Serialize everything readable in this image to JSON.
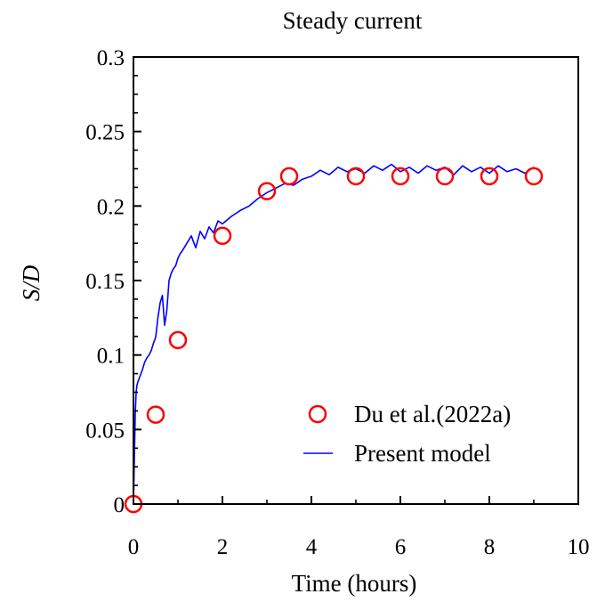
{
  "chart_data": {
    "type": "line",
    "title": "Steady current",
    "xlabel": "Time (hours)",
    "ylabel": "S/D",
    "xlim": [
      0,
      10
    ],
    "ylim": [
      0,
      0.3
    ],
    "x_ticks": [
      0,
      2,
      4,
      6,
      8,
      10
    ],
    "y_ticks": [
      0,
      0.05,
      0.1,
      0.15,
      0.2,
      0.25,
      0.3
    ],
    "x_tick_labels": [
      "0",
      "2",
      "4",
      "6",
      "8",
      "10"
    ],
    "y_tick_labels": [
      "0",
      "0.05",
      "0.1",
      "0.15",
      "0.2",
      "0.25",
      "0.3"
    ],
    "grid": false,
    "legend_position": "bottom-right",
    "series": [
      {
        "name": "Du et al.(2022a)",
        "kind": "scatter",
        "marker": "open-circle",
        "color": "#ff0000",
        "x": [
          0.0,
          0.5,
          1.0,
          2.0,
          3.0,
          3.5,
          5.0,
          6.0,
          7.0,
          8.0,
          9.0
        ],
        "y": [
          0.0,
          0.06,
          0.11,
          0.18,
          0.21,
          0.22,
          0.22,
          0.22,
          0.22,
          0.22,
          0.22
        ]
      },
      {
        "name": "Present model",
        "kind": "line",
        "color": "#0000ff",
        "x": [
          0.0,
          0.02,
          0.04,
          0.06,
          0.08,
          0.1,
          0.15,
          0.2,
          0.25,
          0.3,
          0.35,
          0.4,
          0.45,
          0.5,
          0.55,
          0.6,
          0.65,
          0.7,
          0.75,
          0.8,
          0.85,
          0.9,
          0.95,
          1.0,
          1.05,
          1.1,
          1.2,
          1.3,
          1.4,
          1.5,
          1.6,
          1.7,
          1.8,
          1.9,
          2.0,
          2.2,
          2.4,
          2.6,
          2.8,
          3.0,
          3.2,
          3.4,
          3.6,
          3.8,
          4.0,
          4.2,
          4.4,
          4.6,
          4.8,
          5.0,
          5.2,
          5.4,
          5.6,
          5.8,
          6.0,
          6.2,
          6.4,
          6.6,
          6.8,
          7.0,
          7.2,
          7.4,
          7.6,
          7.8,
          8.0,
          8.2,
          8.4,
          8.6,
          8.8,
          9.0
        ],
        "y": [
          0.0,
          0.03,
          0.06,
          0.075,
          0.08,
          0.082,
          0.086,
          0.09,
          0.095,
          0.098,
          0.1,
          0.103,
          0.108,
          0.112,
          0.125,
          0.135,
          0.14,
          0.12,
          0.13,
          0.15,
          0.155,
          0.158,
          0.16,
          0.165,
          0.168,
          0.17,
          0.175,
          0.18,
          0.172,
          0.183,
          0.178,
          0.186,
          0.182,
          0.19,
          0.188,
          0.193,
          0.197,
          0.2,
          0.205,
          0.209,
          0.212,
          0.215,
          0.214,
          0.218,
          0.22,
          0.224,
          0.221,
          0.226,
          0.223,
          0.225,
          0.222,
          0.227,
          0.224,
          0.228,
          0.223,
          0.226,
          0.222,
          0.227,
          0.224,
          0.226,
          0.221,
          0.227,
          0.223,
          0.226,
          0.222,
          0.227,
          0.223,
          0.225,
          0.222,
          0.226
        ]
      }
    ]
  }
}
